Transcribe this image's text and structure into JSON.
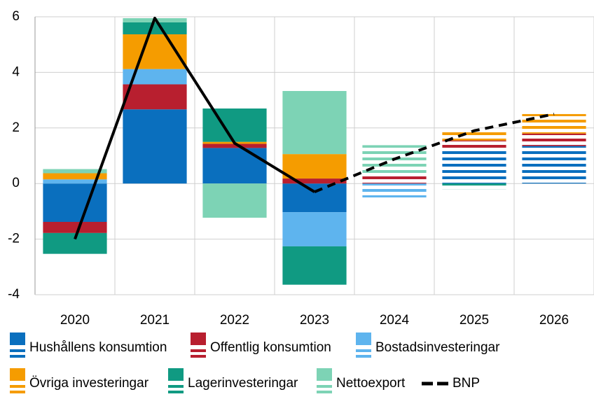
{
  "chart_data": {
    "type": "bar",
    "categories": [
      "2020",
      "2021",
      "2022",
      "2023",
      "2024",
      "2025",
      "2026"
    ],
    "striped_from": "2024",
    "series": [
      {
        "name": "Hushållens konsumtion",
        "color": "#0a6fbe",
        "values": [
          -1.38,
          2.67,
          1.28,
          -1.03,
          0,
          1.25,
          1.35
        ]
      },
      {
        "name": "Offentlig konsumtion",
        "color": "#b81f2f",
        "values": [
          -0.4,
          0.9,
          0.15,
          0.18,
          0.35,
          0.3,
          0.45
        ]
      },
      {
        "name": "Bostadsinvesteringar",
        "color": "#5eb4ee",
        "values": [
          0.15,
          0.55,
          0,
          -1.23,
          -0.5,
          0,
          0
        ]
      },
      {
        "name": "Övriga investeringar",
        "color": "#f59c00",
        "values": [
          0.22,
          1.25,
          0.07,
          0.88,
          0,
          0.4,
          0.7
        ]
      },
      {
        "name": "Lagerinvesteringar",
        "color": "#109a82",
        "values": [
          -0.75,
          0.43,
          1.2,
          -1.38,
          0,
          -0.2,
          0
        ]
      },
      {
        "name": "Nettoexport",
        "color": "#7dd3b5",
        "values": [
          0.15,
          0.15,
          -1.23,
          2.27,
          1.03,
          0,
          0
        ]
      },
      {
        "name": "BNP",
        "type": "line",
        "color": "#000000",
        "values": [
          -2.0,
          5.95,
          1.45,
          -0.3,
          0.88,
          1.9,
          2.5
        ]
      }
    ],
    "ylim": [
      -4,
      6
    ],
    "yticks": [
      -4,
      -2,
      0,
      2,
      4,
      6
    ],
    "grid": true
  }
}
